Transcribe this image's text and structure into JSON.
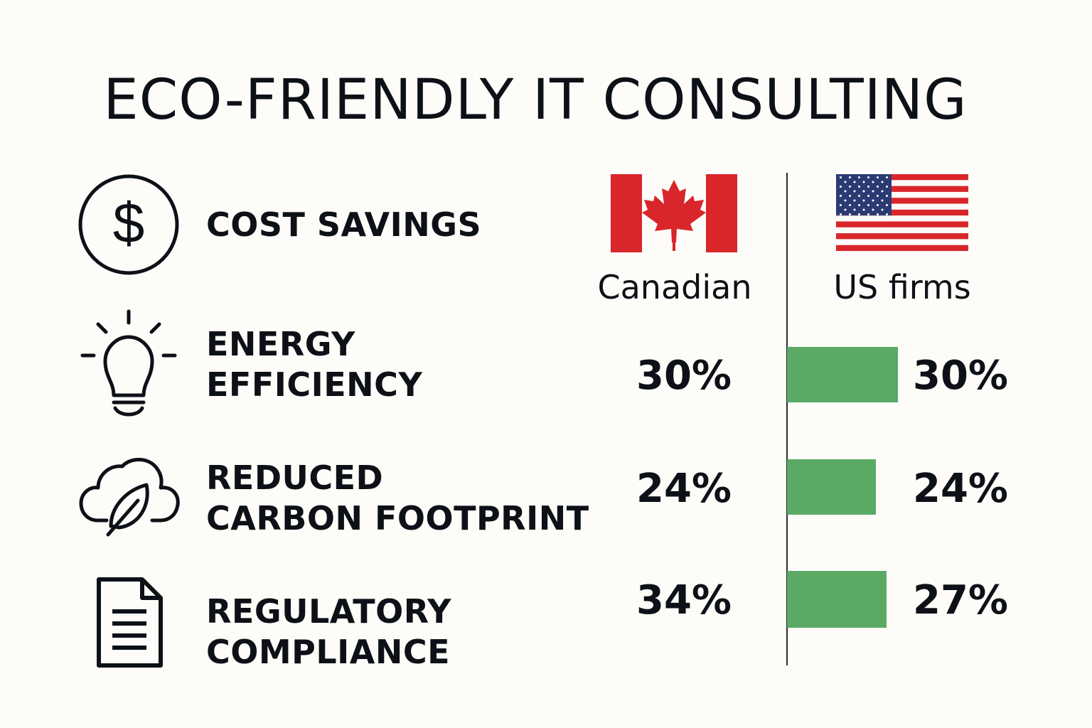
{
  "page": {
    "title": "ECO-FRIENDLY IT CONSULTING"
  },
  "colors": {
    "bar": "#5aaa66",
    "text": "#0d1117",
    "flag_red": "#d8262b",
    "flag_blue": "#2c3a73",
    "background": "#fdfcf8"
  },
  "rows": [
    {
      "label_lines": [
        "COST SAVINGS"
      ],
      "icon": "dollar-circle-icon"
    },
    {
      "label_lines": [
        "ENERGY",
        "EFFICIENCY"
      ],
      "icon": "lightbulb-icon"
    },
    {
      "label_lines": [
        "REDUCED",
        "CARBON FOOTPRINT"
      ],
      "icon": "cloud-leaf-icon"
    },
    {
      "label_lines": [
        "REGULATORY",
        "COMPLIANCE"
      ],
      "icon": "document-icon"
    }
  ],
  "columns": {
    "canadian": {
      "label": "Canadian",
      "flag": "canada-flag-icon"
    },
    "us": {
      "label": "US firms",
      "flag": "us-flag-icon"
    }
  },
  "chart_data": {
    "type": "bar",
    "title": "ECO-FRIENDLY IT CONSULTING",
    "categories": [
      "ENERGY EFFICIENCY",
      "REDUCED CARBON FOOTPRINT",
      "REGULATORY COMPLIANCE"
    ],
    "series": [
      {
        "name": "Canadian",
        "values": [
          30,
          24,
          34
        ],
        "labels": [
          "30%",
          "24%",
          "34%"
        ]
      },
      {
        "name": "US firms",
        "values": [
          30,
          24,
          27
        ],
        "labels": [
          "30%",
          "24%",
          "27%"
        ]
      }
    ],
    "unit": "%",
    "bars_shown_for": "US firms"
  }
}
